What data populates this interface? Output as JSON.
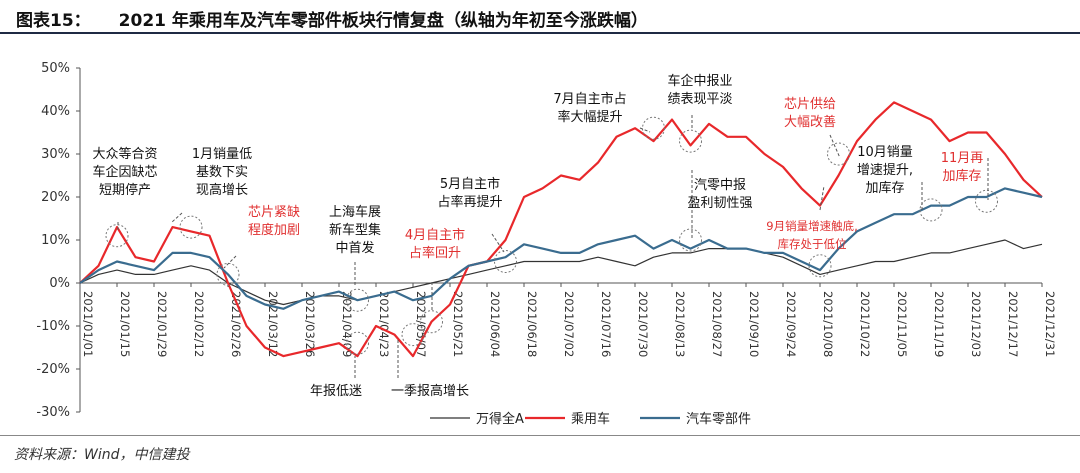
{
  "title": {
    "number": "图表15：",
    "text": "2021 年乘用车及汽车零部件板块行情复盘（纵轴为年初至今涨跌幅）"
  },
  "source": "资料来源：Wind，中信建投",
  "colors": {
    "wande": "#333333",
    "passenger": "#e8282b",
    "parts": "#3a6c8f",
    "ann_red": "#e03030"
  },
  "chart_data": {
    "type": "line",
    "ylim": [
      -30,
      50
    ],
    "y_ticks": [
      -30,
      -20,
      -10,
      0,
      10,
      20,
      30,
      40,
      50
    ],
    "y_tick_labels": [
      "-30%",
      "-20%",
      "-10%",
      "0%",
      "10%",
      "20%",
      "30%",
      "40%",
      "50%"
    ],
    "x_tick_labels": [
      "2021/01/01",
      "2021/01/15",
      "2021/01/29",
      "2021/02/12",
      "2021/02/26",
      "2021/03/12",
      "2021/03/26",
      "2021/04/09",
      "2021/04/23",
      "2021/05/07",
      "2021/05/21",
      "2021/06/04",
      "2021/06/18",
      "2021/07/02",
      "2021/07/16",
      "2021/07/30",
      "2021/08/13",
      "2021/08/27",
      "2021/09/10",
      "2021/09/24",
      "2021/10/08",
      "2021/10/22",
      "2021/11/05",
      "2021/11/19",
      "2021/12/03",
      "2021/12/17",
      "2021/12/31"
    ],
    "x": [
      "2021/01/01",
      "2021/01/08",
      "2021/01/15",
      "2021/01/22",
      "2021/01/29",
      "2021/02/05",
      "2021/02/12",
      "2021/02/19",
      "2021/02/26",
      "2021/03/05",
      "2021/03/12",
      "2021/03/19",
      "2021/03/26",
      "2021/04/02",
      "2021/04/09",
      "2021/04/16",
      "2021/04/23",
      "2021/04/30",
      "2021/05/07",
      "2021/05/14",
      "2021/05/21",
      "2021/05/28",
      "2021/06/04",
      "2021/06/11",
      "2021/06/18",
      "2021/06/25",
      "2021/07/02",
      "2021/07/09",
      "2021/07/16",
      "2021/07/23",
      "2021/07/30",
      "2021/08/06",
      "2021/08/13",
      "2021/08/20",
      "2021/08/27",
      "2021/09/03",
      "2021/09/10",
      "2021/09/17",
      "2021/09/24",
      "2021/10/01",
      "2021/10/08",
      "2021/10/15",
      "2021/10/22",
      "2021/10/29",
      "2021/11/05",
      "2021/11/12",
      "2021/11/19",
      "2021/11/26",
      "2021/12/03",
      "2021/12/10",
      "2021/12/17",
      "2021/12/24",
      "2021/12/31"
    ],
    "series": [
      {
        "name": "万得全A",
        "color": "#333333",
        "values": [
          0,
          2,
          3,
          2,
          2,
          3,
          4,
          3,
          0,
          -2,
          -4,
          -5,
          -4,
          -3,
          -3,
          -4,
          -3,
          -2,
          -1,
          0,
          1,
          2,
          3,
          4,
          5,
          5,
          5,
          5,
          6,
          5,
          4,
          6,
          7,
          7,
          8,
          8,
          8,
          7,
          6,
          4,
          2,
          3,
          4,
          5,
          5,
          6,
          7,
          7,
          8,
          9,
          10,
          8,
          9
        ]
      },
      {
        "name": "乘用车",
        "color": "#e8282b",
        "values": [
          0,
          4,
          13,
          6,
          5,
          13,
          12,
          11,
          0,
          -10,
          -15,
          -17,
          -16,
          -15,
          -14,
          -17,
          -10,
          -12,
          -17,
          -9,
          -5,
          4,
          5,
          10,
          20,
          22,
          25,
          24,
          28,
          34,
          36,
          33,
          38,
          32,
          37,
          34,
          34,
          30,
          27,
          22,
          18,
          25,
          33,
          38,
          42,
          40,
          38,
          33,
          35,
          35,
          30,
          24,
          20
        ]
      },
      {
        "name": "汽车零部件",
        "color": "#3a6c8f",
        "values": [
          0,
          3,
          5,
          4,
          3,
          7,
          7,
          6,
          2,
          -3,
          -5,
          -6,
          -4,
          -3,
          -2,
          -4,
          -3,
          -2,
          -4,
          -3,
          1,
          4,
          5,
          6,
          9,
          8,
          7,
          7,
          9,
          10,
          11,
          8,
          10,
          8,
          10,
          8,
          8,
          7,
          7,
          5,
          3,
          8,
          12,
          14,
          16,
          16,
          18,
          18,
          20,
          20,
          22,
          21,
          20
        ]
      }
    ],
    "legend": [
      "万得全A",
      "乘用车",
      "汽车零部件"
    ],
    "annotations": [
      {
        "id": "a1",
        "lines": [
          "大众等合资",
          "车企因缺芯",
          "短期停产"
        ],
        "color": "dark",
        "date": "2021/01/15",
        "y": 11
      },
      {
        "id": "a2",
        "lines": [
          "1月销量低",
          "基数下实",
          "现高增长"
        ],
        "color": "dark",
        "date": "2021/02/12",
        "y": 13
      },
      {
        "id": "a3",
        "lines": [
          "芯片紧缺",
          "程度加剧"
        ],
        "color": "red",
        "date": "2021/02/26",
        "y": 2
      },
      {
        "id": "a4",
        "lines": [
          "上海车展",
          "新车型集",
          "中首发"
        ],
        "color": "dark",
        "date": "2021/04/16",
        "y": -4
      },
      {
        "id": "a5",
        "lines": [
          "4月自主市",
          "占率回升"
        ],
        "color": "red",
        "date": "2021/05/14",
        "y": -9
      },
      {
        "id": "a6",
        "lines": [
          "5月自主市",
          "占率再提升"
        ],
        "color": "dark",
        "date": "2021/06/11",
        "y": 5
      },
      {
        "id": "a7",
        "lines": [
          "7月自主市占",
          "率大幅提升"
        ],
        "color": "dark",
        "date": "2021/08/06",
        "y": 36
      },
      {
        "id": "a8",
        "lines": [
          "车企中报业",
          "绩表现平淡"
        ],
        "color": "dark",
        "date": "2021/08/20",
        "y": 33
      },
      {
        "id": "a9",
        "lines": [
          "汽零中报",
          "盈利韧性强"
        ],
        "color": "dark",
        "date": "2021/08/20",
        "y": 10
      },
      {
        "id": "a10",
        "lines": [
          "芯片供给",
          "大幅改善"
        ],
        "color": "red",
        "date": "2021/10/15",
        "y": 30
      },
      {
        "id": "a11",
        "lines": [
          "9月销量增速触底,",
          "库存处于低位"
        ],
        "color": "red",
        "date": "2021/10/08",
        "y": 4
      },
      {
        "id": "a12",
        "lines": [
          "10月销量",
          "增速提升,",
          "加库存"
        ],
        "color": "dark",
        "date": "2021/11/19",
        "y": 17
      },
      {
        "id": "a13",
        "lines": [
          "11月再",
          "加库存"
        ],
        "color": "red",
        "date": "2021/12/10",
        "y": 19
      },
      {
        "id": "a14",
        "lines": [
          "年报低迷"
        ],
        "color": "dark",
        "date": "2021/04/16",
        "y": -14
      },
      {
        "id": "a15",
        "lines": [
          "一季报高增长"
        ],
        "color": "dark",
        "date": "2021/05/07",
        "y": -12
      }
    ]
  }
}
